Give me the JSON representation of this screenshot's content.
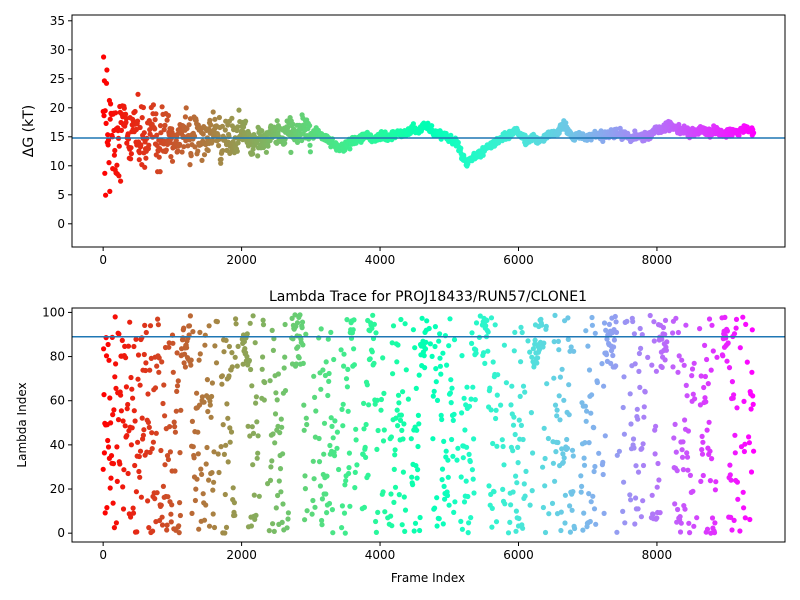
{
  "chart_data": [
    {
      "type": "scatter",
      "title": "",
      "xlabel": "",
      "ylabel": "ΔG (kT)",
      "xlim": [
        -450,
        9850
      ],
      "ylim": [
        -4,
        36
      ],
      "xticks": [
        0,
        2000,
        4000,
        6000,
        8000
      ],
      "yticks": [
        0,
        5,
        10,
        15,
        20,
        25,
        30,
        35
      ],
      "xtick_labels": [
        "0",
        "2000",
        "4000",
        "6000",
        "8000"
      ],
      "ytick_labels": [
        "0",
        "5",
        "10",
        "15",
        "20",
        "25",
        "30",
        "35"
      ],
      "colormap": "rainbow (red at frame 0 → violet at last frame)",
      "hline": 14.8,
      "hline_color": "#1f77b4",
      "grid": false,
      "keypoints": [
        [
          0,
          15
        ],
        [
          80,
          15
        ],
        [
          150,
          16
        ],
        [
          250,
          15.5
        ],
        [
          400,
          15
        ],
        [
          600,
          14
        ],
        [
          800,
          15
        ],
        [
          1000,
          14.5
        ],
        [
          1200,
          15
        ],
        [
          1400,
          15
        ],
        [
          1600,
          16
        ],
        [
          1800,
          14.5
        ],
        [
          2000,
          15.5
        ],
        [
          2200,
          14
        ],
        [
          2400,
          15
        ],
        [
          2600,
          15.5
        ],
        [
          2800,
          16
        ],
        [
          3000,
          15.8
        ],
        [
          3200,
          15
        ],
        [
          3400,
          13
        ],
        [
          3600,
          14
        ],
        [
          3800,
          15
        ],
        [
          3900,
          14.8
        ],
        [
          4100,
          15.2
        ],
        [
          4300,
          15.5
        ],
        [
          4500,
          16
        ],
        [
          4650,
          17
        ],
        [
          4800,
          15.5
        ],
        [
          5000,
          15
        ],
        [
          5100,
          14
        ],
        [
          5250,
          10.5
        ],
        [
          5400,
          12
        ],
        [
          5600,
          13.5
        ],
        [
          5800,
          15
        ],
        [
          5950,
          16
        ],
        [
          6100,
          14.5
        ],
        [
          6300,
          14.5
        ],
        [
          6500,
          15.5
        ],
        [
          6650,
          17
        ],
        [
          6800,
          15
        ],
        [
          7000,
          15
        ],
        [
          7200,
          15.2
        ],
        [
          7400,
          15.6
        ],
        [
          7600,
          15
        ],
        [
          7800,
          15
        ],
        [
          8000,
          16
        ],
        [
          8200,
          17
        ],
        [
          8350,
          16
        ],
        [
          8600,
          15.8
        ],
        [
          8800,
          16
        ],
        [
          9000,
          15.5
        ],
        [
          9200,
          16
        ],
        [
          9400,
          16.1
        ]
      ],
      "n_points": 9400
    },
    {
      "type": "scatter",
      "title": "Lambda Trace for PROJ18433/RUN57/CLONE1",
      "xlabel": "Frame Index",
      "ylabel": "Lambda Index",
      "xlim": [
        -450,
        9850
      ],
      "ylim": [
        -4,
        102
      ],
      "xticks": [
        0,
        2000,
        4000,
        6000,
        8000
      ],
      "yticks": [
        0,
        20,
        40,
        60,
        80,
        100
      ],
      "xtick_labels": [
        "0",
        "2000",
        "4000",
        "6000",
        "8000"
      ],
      "ytick_labels": [
        "0",
        "20",
        "40",
        "60",
        "80",
        "100"
      ],
      "colormap": "rainbow (red at frame 0 → violet at last frame)",
      "hline": 89,
      "hline_color": "#1f77b4",
      "grid": false,
      "lambda_range": [
        0,
        99
      ],
      "n_points": 9400
    }
  ]
}
